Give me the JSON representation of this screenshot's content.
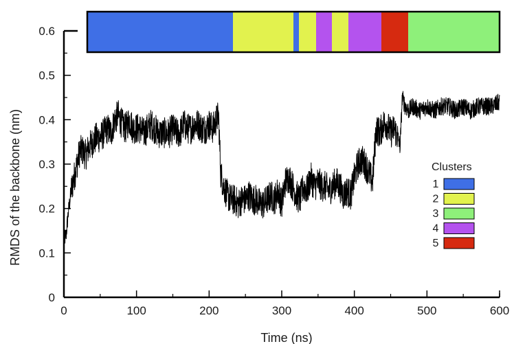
{
  "chart_data": {
    "type": "line",
    "xlabel": "Time (ns)",
    "ylabel": "RMDS of the backbone (nm)",
    "xlim": [
      0,
      600
    ],
    "ylim": [
      0,
      0.6
    ],
    "x_ticks": [
      "0",
      "100",
      "200",
      "300",
      "400",
      "500",
      "600"
    ],
    "y_ticks": [
      "0",
      "0.1",
      "0.2",
      "0.3",
      "0.4",
      "0.5",
      "0.6"
    ],
    "grid": false,
    "series": [
      {
        "color": "#000000",
        "x": [
          0,
          3,
          6,
          10,
          14,
          18,
          22,
          26,
          30,
          35,
          40,
          45,
          50,
          55,
          60,
          65,
          70,
          75,
          80,
          85,
          90,
          95,
          100,
          105,
          110,
          115,
          120,
          125,
          130,
          135,
          140,
          145,
          150,
          155,
          160,
          165,
          170,
          175,
          180,
          185,
          190,
          195,
          200,
          205,
          210,
          213,
          216,
          220,
          225,
          230,
          235,
          240,
          245,
          250,
          255,
          260,
          265,
          270,
          275,
          280,
          285,
          290,
          295,
          300,
          305,
          310,
          315,
          320,
          325,
          330,
          335,
          340,
          345,
          350,
          355,
          360,
          365,
          370,
          375,
          380,
          385,
          390,
          395,
          400,
          405,
          410,
          415,
          420,
          425,
          430,
          435,
          440,
          445,
          450,
          455,
          460,
          463,
          466,
          470,
          475,
          480,
          490,
          500,
          510,
          520,
          530,
          540,
          550,
          560,
          570,
          580,
          590,
          600
        ],
        "y": [
          0.13,
          0.14,
          0.19,
          0.24,
          0.27,
          0.3,
          0.33,
          0.33,
          0.32,
          0.34,
          0.35,
          0.36,
          0.36,
          0.37,
          0.38,
          0.37,
          0.4,
          0.41,
          0.39,
          0.38,
          0.4,
          0.38,
          0.38,
          0.38,
          0.37,
          0.38,
          0.39,
          0.38,
          0.37,
          0.37,
          0.37,
          0.37,
          0.38,
          0.37,
          0.37,
          0.39,
          0.38,
          0.38,
          0.39,
          0.39,
          0.38,
          0.38,
          0.39,
          0.38,
          0.4,
          0.41,
          0.28,
          0.25,
          0.23,
          0.22,
          0.22,
          0.21,
          0.22,
          0.22,
          0.23,
          0.22,
          0.22,
          0.21,
          0.21,
          0.22,
          0.23,
          0.22,
          0.24,
          0.21,
          0.26,
          0.27,
          0.25,
          0.23,
          0.22,
          0.25,
          0.24,
          0.27,
          0.25,
          0.26,
          0.25,
          0.25,
          0.24,
          0.25,
          0.26,
          0.25,
          0.23,
          0.24,
          0.23,
          0.27,
          0.3,
          0.31,
          0.3,
          0.28,
          0.26,
          0.38,
          0.37,
          0.39,
          0.39,
          0.37,
          0.38,
          0.36,
          0.34,
          0.45,
          0.43,
          0.42,
          0.43,
          0.42,
          0.43,
          0.42,
          0.43,
          0.43,
          0.42,
          0.43,
          0.42,
          0.43,
          0.43,
          0.43,
          0.44
        ]
      }
    ],
    "cluster_bar": [
      {
        "from": 0,
        "to": 212,
        "cluster": "1"
      },
      {
        "from": 212,
        "to": 300,
        "cluster": "2"
      },
      {
        "from": 300,
        "to": 308,
        "cluster": "1"
      },
      {
        "from": 308,
        "to": 333,
        "cluster": "2"
      },
      {
        "from": 333,
        "to": 356,
        "cluster": "4"
      },
      {
        "from": 356,
        "to": 380,
        "cluster": "2"
      },
      {
        "from": 380,
        "to": 428,
        "cluster": "4"
      },
      {
        "from": 428,
        "to": 467,
        "cluster": "5"
      },
      {
        "from": 467,
        "to": 600,
        "cluster": "3"
      }
    ],
    "legend": {
      "title": "Clusters",
      "position": "right-center",
      "entries": [
        {
          "label": "1",
          "color": "#3f6fe6"
        },
        {
          "label": "2",
          "color": "#e2f24e"
        },
        {
          "label": "3",
          "color": "#8ef07a"
        },
        {
          "label": "4",
          "color": "#b453ee"
        },
        {
          "label": "5",
          "color": "#d62a10"
        }
      ]
    }
  }
}
